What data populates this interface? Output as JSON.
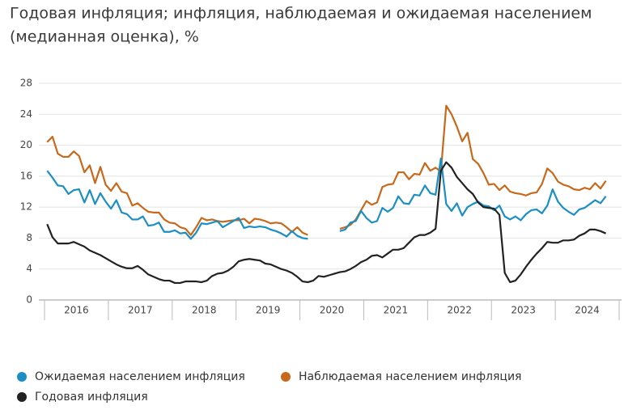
{
  "chart_data": {
    "type": "line",
    "title": "Годовая инфляция; инфляция, наблюдаемая и ожидаемая населением (медианная оценка), %",
    "title_lines": [
      "Годовая инфляция; инфляция, наблюдаемая и ожидаемая населением",
      "(медианная оценка), %"
    ],
    "categories": [
      null,
      null,
      null,
      null,
      null,
      null,
      "2016",
      null,
      null,
      null,
      null,
      null,
      null,
      null,
      null,
      null,
      null,
      null,
      "2017",
      null,
      null,
      null,
      null,
      null,
      null,
      null,
      null,
      null,
      null,
      null,
      "2018",
      null,
      null,
      null,
      null,
      null,
      null,
      null,
      null,
      null,
      null,
      null,
      "2019",
      null,
      null,
      null,
      null,
      null,
      null,
      null,
      null,
      null,
      null,
      null,
      "2020",
      null,
      null,
      null,
      null,
      null,
      null,
      null,
      null,
      null,
      null,
      null,
      "2021",
      null,
      null,
      null,
      null,
      null,
      null,
      null,
      null,
      null,
      null,
      null,
      "2022",
      null,
      null,
      null,
      null,
      null,
      null,
      null,
      null,
      null,
      null,
      null,
      "2023",
      null,
      null,
      null,
      null,
      null,
      null,
      null,
      null,
      null,
      null,
      null,
      "2024",
      null,
      null,
      null,
      null,
      null
    ],
    "ylim": [
      0,
      28
    ],
    "yticks": [
      0,
      4,
      8,
      12,
      16,
      20,
      24,
      28
    ],
    "grid": true,
    "legend": "bottom",
    "series": [
      {
        "name": "Ожидаемая населением инфляция",
        "color": "#1b8fc4",
        "values": [
          16.7,
          15.8,
          14.8,
          14.7,
          13.7,
          14.2,
          14.3,
          12.6,
          14.2,
          12.4,
          13.8,
          12.7,
          11.8,
          12.9,
          11.3,
          11.1,
          10.4,
          10.4,
          10.8,
          9.6,
          9.7,
          10.0,
          8.8,
          8.8,
          9.0,
          8.6,
          8.7,
          7.9,
          8.7,
          9.9,
          9.8,
          10.0,
          10.2,
          9.4,
          9.8,
          10.2,
          10.6,
          9.3,
          9.5,
          9.4,
          9.5,
          9.4,
          9.1,
          8.9,
          8.6,
          8.2,
          8.9,
          8.3,
          8.0,
          7.9,
          null,
          null,
          null,
          null,
          null,
          8.9,
          9.1,
          10.0,
          10.2,
          11.5,
          10.6,
          10.0,
          10.2,
          11.9,
          11.4,
          11.9,
          13.4,
          12.5,
          12.4,
          13.6,
          13.5,
          14.8,
          13.8,
          13.6,
          18.3,
          12.4,
          11.5,
          12.5,
          10.9,
          12.0,
          12.4,
          12.7,
          12.2,
          12.1,
          11.6,
          12.2,
          10.8,
          10.4,
          10.8,
          10.3,
          11.1,
          11.6,
          11.7,
          11.2,
          12.2,
          14.3,
          12.7,
          11.9,
          11.4,
          11.0,
          11.7,
          11.9,
          12.4,
          12.9,
          12.5,
          13.4,
          null,
          null
        ]
      },
      {
        "name": "Наблюдаемая населением инфляция",
        "color": "#c8681a",
        "values": [
          20.4,
          21.1,
          18.9,
          18.5,
          18.5,
          19.2,
          18.6,
          16.5,
          17.4,
          15.1,
          17.2,
          14.9,
          14.1,
          15.1,
          14.0,
          13.8,
          12.2,
          12.5,
          11.9,
          11.4,
          11.3,
          11.3,
          10.4,
          10.0,
          9.9,
          9.4,
          9.2,
          8.4,
          9.4,
          10.6,
          10.3,
          10.4,
          10.2,
          10.1,
          10.2,
          10.3,
          10.3,
          10.5,
          9.9,
          10.5,
          10.4,
          10.2,
          9.9,
          10.0,
          9.9,
          9.4,
          8.8,
          9.4,
          8.7,
          8.4,
          null,
          null,
          null,
          null,
          null,
          9.2,
          9.4,
          9.7,
          10.4,
          11.6,
          12.8,
          12.3,
          12.6,
          14.6,
          14.9,
          15.0,
          16.5,
          16.5,
          15.6,
          16.3,
          16.2,
          17.7,
          16.7,
          17.1,
          16.6,
          25.1,
          24.0,
          22.4,
          20.5,
          21.6,
          18.2,
          17.6,
          16.4,
          14.9,
          15.0,
          14.2,
          14.8,
          14.0,
          13.8,
          13.7,
          13.5,
          13.8,
          13.9,
          15.0,
          17.0,
          16.4,
          15.3,
          14.9,
          14.7,
          14.3,
          14.2,
          14.5,
          14.3,
          15.1,
          14.4,
          15.4,
          null,
          null
        ]
      },
      {
        "name": "Годовая инфляция",
        "color": "#222222",
        "values": [
          9.8,
          8.1,
          7.3,
          7.3,
          7.3,
          7.5,
          7.2,
          6.9,
          6.4,
          6.1,
          5.8,
          5.4,
          5.0,
          4.6,
          4.3,
          4.1,
          4.1,
          4.4,
          3.9,
          3.3,
          3.0,
          2.7,
          2.5,
          2.5,
          2.2,
          2.2,
          2.4,
          2.4,
          2.4,
          2.3,
          2.5,
          3.1,
          3.4,
          3.5,
          3.8,
          4.3,
          5.0,
          5.2,
          5.3,
          5.2,
          5.1,
          4.7,
          4.6,
          4.3,
          4.0,
          3.8,
          3.5,
          3.0,
          2.4,
          2.3,
          2.5,
          3.1,
          3.0,
          3.2,
          3.4,
          3.6,
          3.7,
          4.0,
          4.4,
          4.9,
          5.2,
          5.7,
          5.8,
          5.5,
          6.0,
          6.5,
          6.5,
          6.7,
          7.4,
          8.1,
          8.4,
          8.4,
          8.7,
          9.2,
          16.7,
          17.8,
          17.1,
          15.9,
          15.1,
          14.3,
          13.7,
          12.6,
          12.0,
          11.9,
          11.8,
          11.0,
          3.5,
          2.3,
          2.5,
          3.3,
          4.3,
          5.2,
          6.0,
          6.7,
          7.5,
          7.4,
          7.4,
          7.7,
          7.7,
          7.8,
          8.3,
          8.6,
          9.1,
          9.1,
          8.9,
          8.6,
          null,
          null
        ]
      }
    ]
  }
}
